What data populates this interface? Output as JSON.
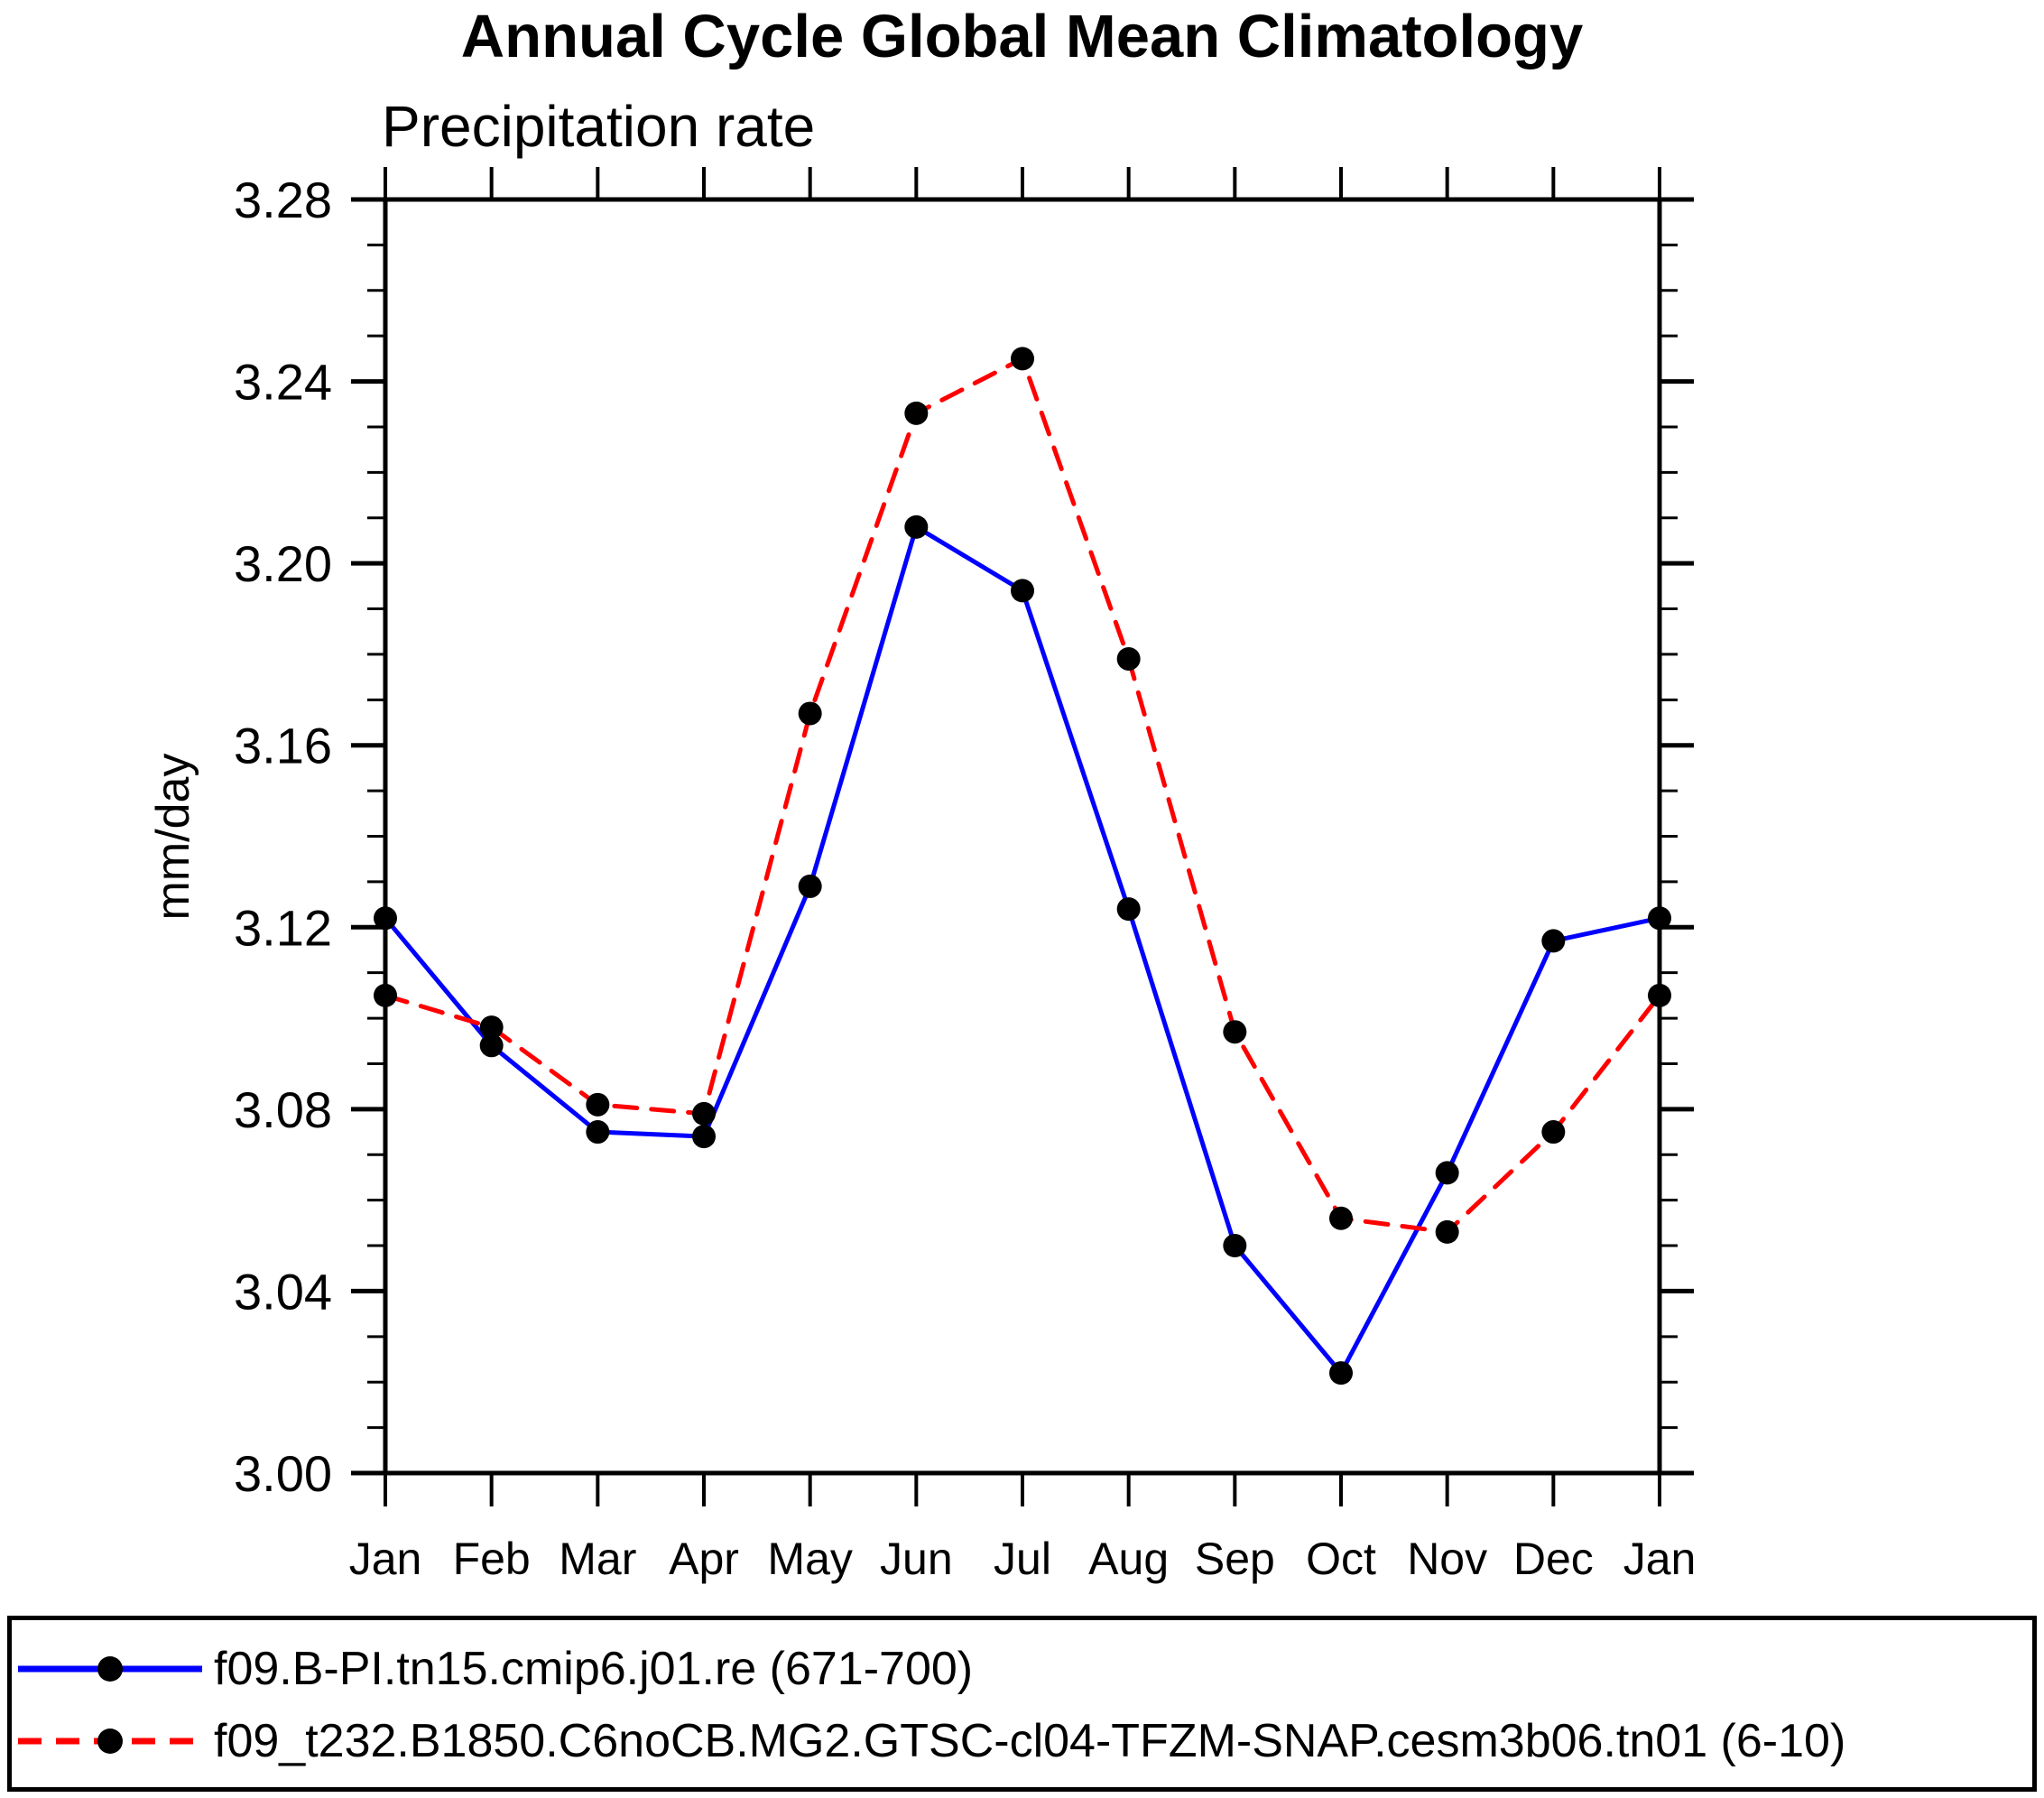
{
  "title": "Annual Cycle Global Mean Climatology",
  "subtitle": "Precipitation rate",
  "y_axis_unit": "mm/day",
  "legend": {
    "entries": [
      {
        "label": "f09.B-PI.tn15.cmip6.j01.re (671-700)",
        "line_color": "#0000ff",
        "line_style": "solid",
        "marker": "filled-circle-icon",
        "marker_color": "#000000"
      },
      {
        "label": "f09_t232.B1850.C6noCB.MG2.GTSC-cl04-TFZM-SNAP.cesm3b06.tn01 (6-10)",
        "line_color": "#ff0000",
        "line_style": "dashed",
        "marker": "filled-circle-icon",
        "marker_color": "#000000"
      }
    ]
  },
  "chart_data": {
    "type": "line",
    "title": "Annual Cycle Global Mean Climatology",
    "subtitle": "Precipitation rate",
    "ylabel": "mm/day",
    "xlabel": "",
    "categories": [
      "Jan",
      "Feb",
      "Mar",
      "Apr",
      "May",
      "Jun",
      "Jul",
      "Aug",
      "Sep",
      "Oct",
      "Nov",
      "Dec",
      "Jan"
    ],
    "ylim": [
      3.0,
      3.28
    ],
    "ytick_major_step": 0.04,
    "ytick_minor_step": 0.01,
    "ytick_labels": [
      "3.28",
      "3.24",
      "3.20",
      "3.16",
      "3.12",
      "3.08",
      "3.04",
      "3.00"
    ],
    "grid": false,
    "legend_position": "bottom",
    "series": [
      {
        "name": "f09.B-PI.tn15.cmip6.j01.re (671-700)",
        "color": "#0000ff",
        "style": "solid",
        "marker": "filled-circle",
        "marker_color": "#000000",
        "values": [
          3.122,
          3.094,
          3.075,
          3.074,
          3.129,
          3.208,
          3.194,
          3.124,
          3.05,
          3.022,
          3.066,
          3.117,
          3.122
        ]
      },
      {
        "name": "f09_t232.B1850.C6noCB.MG2.GTSC-cl04-TFZM-SNAP.cesm3b06.tn01 (6-10)",
        "color": "#ff0000",
        "style": "dashed",
        "marker": "filled-circle",
        "marker_color": "#000000",
        "values": [
          3.105,
          3.098,
          3.081,
          3.079,
          3.167,
          3.233,
          3.245,
          3.179,
          3.097,
          3.056,
          3.053,
          3.075,
          3.105
        ]
      }
    ]
  },
  "colors": {
    "axis": "#000000",
    "text": "#000000",
    "background": "#ffffff",
    "series_blue": "#0000ff",
    "series_red": "#ff0000",
    "marker": "#000000"
  }
}
